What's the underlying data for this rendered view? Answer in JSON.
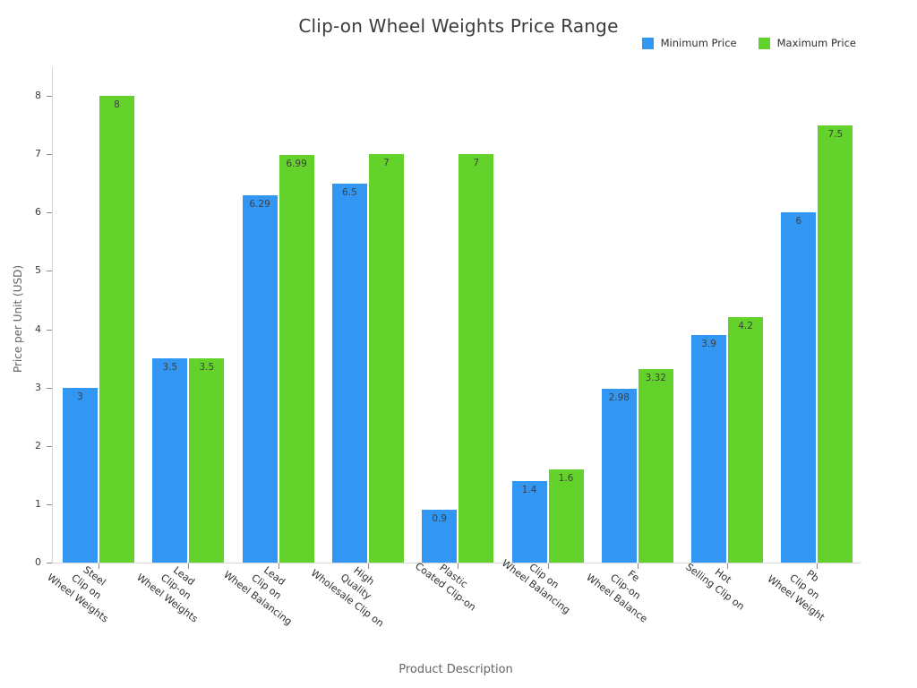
{
  "chart_data": {
    "type": "bar",
    "title": "Clip-on Wheel Weights Price Range",
    "xlabel": "Product Description",
    "ylabel": "Price per Unit (USD)",
    "ylim": [
      0,
      8
    ],
    "ytick_step": 1,
    "grid": false,
    "legend_position": "top-right",
    "bar_value_labels": true,
    "categories": [
      "Steel\nClip on\nWheel Weights",
      "Lead\nClip-on\nWheel Weights",
      "Lead\nClip on\nWheel Balancing",
      "High\nQuality\nWholesale Clip on",
      "Plastic\nCoated Clip-on",
      "Clip on\nWheel Balancing",
      "Fe\nClip-on\nWheel Balance",
      "Hot\nSelling Clip on",
      "Pb\nClip on\nWheel Weight"
    ],
    "series": [
      {
        "name": "Minimum Price",
        "color": "#3297f3",
        "values": [
          3,
          3.5,
          6.29,
          6.5,
          0.9,
          1.4,
          2.98,
          3.9,
          6
        ]
      },
      {
        "name": "Maximum Price",
        "color": "#63d32c",
        "values": [
          8,
          3.5,
          6.99,
          7,
          7,
          1.6,
          3.32,
          4.2,
          7.5
        ]
      }
    ]
  }
}
